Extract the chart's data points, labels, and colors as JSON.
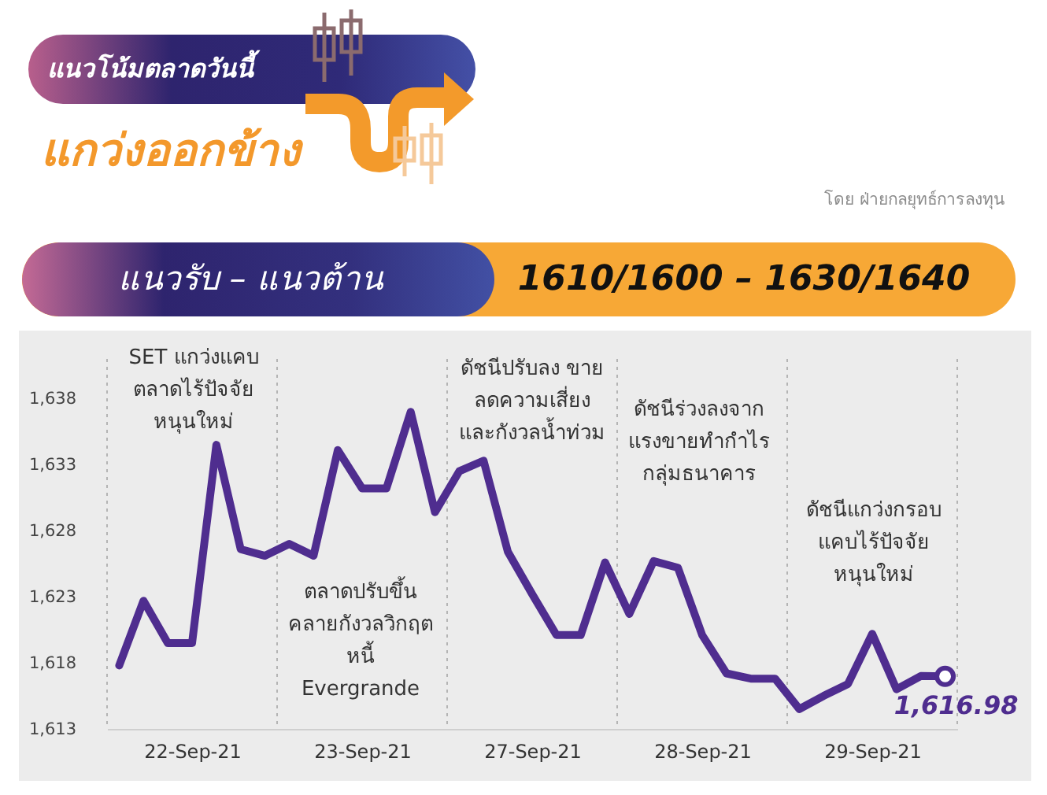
{
  "chart_data": {
    "type": "line",
    "title": "แนวโน้มตลาดวันนี้",
    "subtitle": "แกว่งออกข้าง",
    "categories": [
      null,
      null,
      null,
      "22-Sep-21",
      null,
      null,
      null,
      null,
      null,
      null,
      "23-Sep-21",
      null,
      null,
      null,
      null,
      null,
      null,
      "27-Sep-21",
      null,
      null,
      null,
      null,
      null,
      null,
      "28-Sep-21",
      null,
      null,
      null,
      null,
      null,
      null,
      "29-Sep-21",
      null,
      null,
      null
    ],
    "values": [
      1617.8,
      1622.7,
      1619.5,
      1619.5,
      1634.5,
      1626.6,
      1626.1,
      1627.0,
      1626.1,
      1634.1,
      1631.2,
      1631.2,
      1637.0,
      1629.4,
      1632.5,
      1633.3,
      1626.4,
      1623.2,
      1620.1,
      1620.1,
      1625.6,
      1621.7,
      1625.7,
      1625.2,
      1620.1,
      1617.2,
      1616.8,
      1616.8,
      1614.5,
      1615.5,
      1616.4,
      1620.2,
      1616.0,
      1617.0,
      1616.98
    ],
    "value_labels": [
      null,
      null,
      null,
      null,
      null,
      null,
      null,
      null,
      null,
      null,
      null,
      null,
      null,
      null,
      null,
      null,
      null,
      null,
      null,
      null,
      null,
      null,
      null,
      null,
      null,
      null,
      null,
      null,
      null,
      null,
      null,
      null,
      null,
      null,
      "1,616.98"
    ],
    "color": "#4f2d8f",
    "ylim": [
      1613,
      1641
    ],
    "yticks": [
      {
        "value": 1613,
        "label": "1,613"
      },
      {
        "value": 1618,
        "label": "1,618"
      },
      {
        "value": 1623,
        "label": "1,623"
      },
      {
        "value": 1628,
        "label": "1,628"
      },
      {
        "value": 1633,
        "label": "1,633"
      },
      {
        "value": 1638,
        "label": "1,638"
      }
    ],
    "grid": "x",
    "annotations": [
      "โดย ฝ่ายกลยุทธ์การลงทุน",
      "แนวรับ – แนวต้าน",
      "1610/1600 – 1630/1640",
      "SET แกว่งแคบ\nตลาดไร้ปัจจัย\nหนุนใหม่",
      "ตลาดปรับขึ้น\nคลายกังวลวิกฤต\nหนี้\nEvergrande",
      "ดัชนีปรับลง ขาย\nลดความเสี่ยง\nและกังวลน้ำท่วม",
      "ดัชนีร่วงลงจาก\nแรงขายทำกำไร\nกลุ่มธนาคาร",
      "ดัชนีแกว่งกรอบ\nแคบไร้ปัจจัย\nหนุนใหม่"
    ]
  }
}
